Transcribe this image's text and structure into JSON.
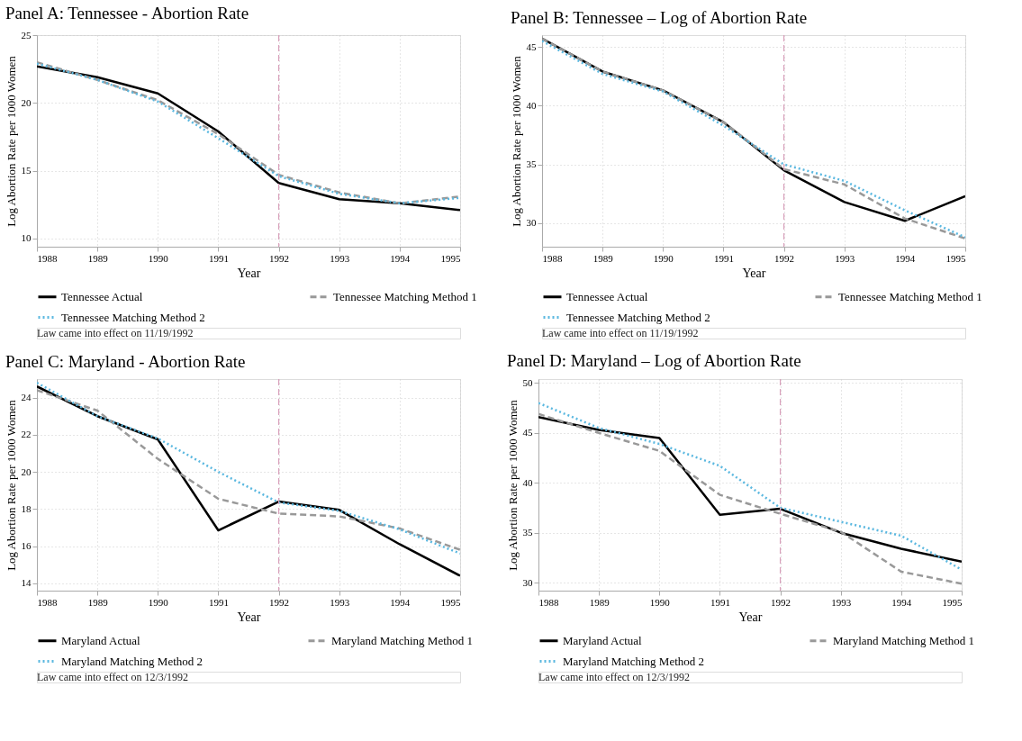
{
  "chart_data": [
    {
      "type": "line",
      "title": "Panel A: Tennessee - Abortion Rate",
      "xlabel": "Year",
      "ylabel": "Log Abortion Rate per 1000 Women",
      "x": [
        1988,
        1989,
        1990,
        1991,
        1992,
        1993,
        1994,
        1995
      ],
      "xlim": [
        1988,
        1995
      ],
      "xticks": [
        1988,
        1989,
        1990,
        1991,
        1992,
        1993,
        1994,
        1995
      ],
      "ylim": [
        9.4,
        25
      ],
      "yticks": [
        10,
        15,
        20,
        25
      ],
      "grid": true,
      "legend": "bottom",
      "series": [
        {
          "name": "Tennessee Actual",
          "color": "#000000",
          "line_style": "solid",
          "values": [
            22.7,
            21.9,
            20.7,
            17.9,
            14.1,
            12.9,
            12.6,
            12.1
          ]
        },
        {
          "name": "Tennessee Matching Method 1",
          "color": "#999999",
          "line_style": "dashed",
          "values": [
            23.0,
            21.7,
            20.2,
            17.7,
            14.7,
            13.4,
            12.6,
            13.1
          ]
        },
        {
          "name": "Tennessee Matching Method 2",
          "color": "#5bb8e0",
          "line_style": "dotted",
          "values": [
            22.9,
            21.7,
            20.1,
            17.4,
            14.6,
            13.3,
            12.6,
            13.0
          ]
        }
      ],
      "ref_lines": [
        {
          "axis": "x",
          "value": 1992,
          "color": "#d9a0bb",
          "line_style": "dashed"
        }
      ],
      "annotations": [
        "Law came into effect on 11/19/1992"
      ]
    },
    {
      "type": "line",
      "title": "Panel B: Tennessee – Log of Abortion Rate",
      "xlabel": "Year",
      "ylabel": "Log Abortion Rate per 1000 Women",
      "x": [
        1988,
        1989,
        1990,
        1991,
        1992,
        1993,
        1994,
        1995
      ],
      "xlim": [
        1988,
        1995
      ],
      "xticks": [
        1988,
        1989,
        1990,
        1991,
        1992,
        1993,
        1994,
        1995
      ],
      "ylim": [
        28,
        46
      ],
      "yticks": [
        30,
        35,
        40,
        45
      ],
      "grid": true,
      "legend": "bottom",
      "series": [
        {
          "name": "Tennessee Actual",
          "color": "#000000",
          "line_style": "solid",
          "values": [
            45.7,
            42.9,
            41.3,
            38.6,
            34.5,
            31.8,
            30.2,
            32.3
          ]
        },
        {
          "name": "Tennessee Matching Method 1",
          "color": "#999999",
          "line_style": "dashed",
          "values": [
            45.7,
            42.9,
            41.3,
            38.6,
            34.6,
            33.3,
            30.4,
            28.7
          ]
        },
        {
          "name": "Tennessee Matching Method 2",
          "color": "#5bb8e0",
          "line_style": "dotted",
          "values": [
            45.5,
            42.7,
            41.2,
            38.3,
            35.0,
            33.6,
            31.1,
            28.8
          ]
        }
      ],
      "ref_lines": [
        {
          "axis": "x",
          "value": 1992,
          "color": "#d9a0bb",
          "line_style": "dashed"
        }
      ],
      "annotations": [
        "Law came into effect on 11/19/1992"
      ]
    },
    {
      "type": "line",
      "title": "Panel C: Maryland - Abortion Rate",
      "xlabel": "Year",
      "ylabel": "Log Abortion Rate per 1000 Women",
      "x": [
        1988,
        1989,
        1990,
        1991,
        1992,
        1993,
        1994,
        1995
      ],
      "xlim": [
        1988,
        1995
      ],
      "xticks": [
        1988,
        1989,
        1990,
        1991,
        1992,
        1993,
        1994,
        1995
      ],
      "ylim": [
        13.6,
        25
      ],
      "yticks": [
        14,
        16,
        18,
        20,
        22,
        24
      ],
      "grid": true,
      "legend": "bottom",
      "series": [
        {
          "name": "Maryland Actual",
          "color": "#000000",
          "line_style": "solid",
          "values": [
            24.6,
            23.0,
            21.75,
            16.85,
            18.4,
            17.95,
            16.1,
            14.4
          ]
        },
        {
          "name": "Maryland Matching Method 1",
          "color": "#999999",
          "line_style": "dashed",
          "values": [
            24.4,
            23.3,
            20.7,
            18.55,
            17.75,
            17.6,
            16.95,
            15.8
          ]
        },
        {
          "name": "Maryland Matching Method 2",
          "color": "#5bb8e0",
          "line_style": "dotted",
          "values": [
            24.8,
            23.0,
            21.8,
            20.0,
            18.35,
            17.9,
            16.9,
            15.6
          ]
        }
      ],
      "ref_lines": [
        {
          "axis": "x",
          "value": 1992,
          "color": "#d9a0bb",
          "line_style": "dashed"
        }
      ],
      "annotations": [
        "Law came into effect on 12/3/1992"
      ]
    },
    {
      "type": "line",
      "title": "Panel D: Maryland – Log of Abortion Rate",
      "xlabel": "Year",
      "ylabel": "Log Abortion Rate per 1000 Women",
      "x": [
        1988,
        1989,
        1990,
        1991,
        1992,
        1993,
        1994,
        1995
      ],
      "xlim": [
        1988,
        1995
      ],
      "xticks": [
        1988,
        1989,
        1990,
        1991,
        1992,
        1993,
        1994,
        1995
      ],
      "ylim": [
        29.2,
        50.4
      ],
      "yticks": [
        30,
        35,
        40,
        45,
        50
      ],
      "grid": true,
      "legend": "bottom",
      "series": [
        {
          "name": "Maryland Actual",
          "color": "#000000",
          "line_style": "solid",
          "values": [
            46.6,
            45.3,
            44.5,
            36.8,
            37.4,
            35.0,
            33.4,
            32.1
          ]
        },
        {
          "name": "Maryland Matching Method 1",
          "color": "#999999",
          "line_style": "dashed",
          "values": [
            46.9,
            45.0,
            43.2,
            38.8,
            36.9,
            35.1,
            31.1,
            29.9
          ]
        },
        {
          "name": "Maryland Matching Method 2",
          "color": "#5bb8e0",
          "line_style": "dotted",
          "values": [
            48.0,
            45.5,
            43.9,
            41.7,
            37.5,
            36.1,
            34.7,
            31.3
          ]
        }
      ],
      "ref_lines": [
        {
          "axis": "x",
          "value": 1992,
          "color": "#d9a0bb",
          "line_style": "dashed"
        }
      ],
      "annotations": [
        "Law came into effect on 12/3/1992"
      ]
    }
  ]
}
